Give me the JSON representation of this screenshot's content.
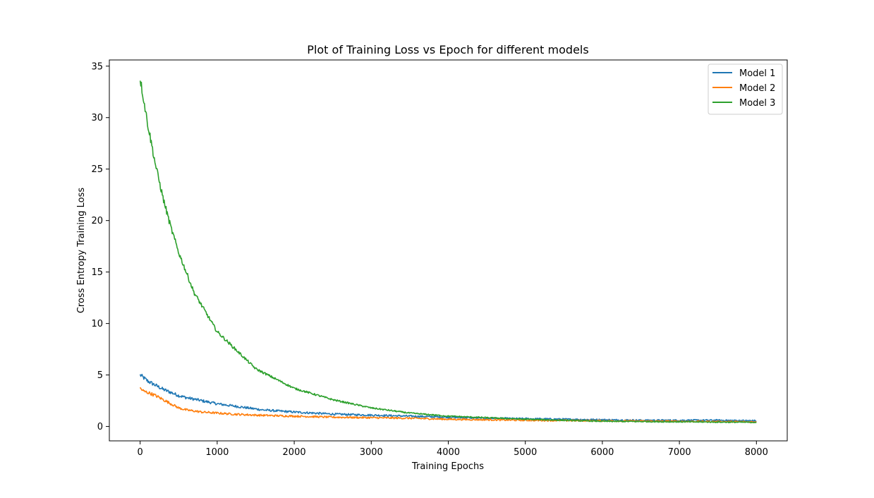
{
  "chart_data": {
    "type": "line",
    "title": "Plot of Training Loss vs Epoch for different models",
    "xlabel": "Training Epochs",
    "ylabel": "Cross Entropy Training Loss",
    "xlim": [
      -400,
      8400
    ],
    "ylim": [
      -1.4,
      35.6
    ],
    "xticks": [
      0,
      1000,
      2000,
      3000,
      4000,
      5000,
      6000,
      7000,
      8000
    ],
    "xtick_labels": [
      "0",
      "1000",
      "2000",
      "3000",
      "4000",
      "5000",
      "6000",
      "7000",
      "8000"
    ],
    "yticks": [
      0,
      5,
      10,
      15,
      20,
      25,
      30,
      35
    ],
    "ytick_labels": [
      "0",
      "5",
      "10",
      "15",
      "20",
      "25",
      "30",
      "35"
    ],
    "grid": false,
    "legend_position": "top-right",
    "series": [
      {
        "name": "Model 1",
        "color": "#1f77b4",
        "x": [
          0,
          100,
          200,
          300,
          400,
          500,
          600,
          800,
          1000,
          1200,
          1400,
          1600,
          1800,
          2000,
          2500,
          3000,
          3500,
          4000,
          4500,
          5000,
          5500,
          6000,
          6500,
          7000,
          7500,
          8000
        ],
        "y": [
          5.0,
          4.4,
          4.0,
          3.6,
          3.3,
          3.0,
          2.8,
          2.5,
          2.2,
          2.0,
          1.8,
          1.6,
          1.5,
          1.4,
          1.2,
          1.1,
          1.0,
          0.9,
          0.8,
          0.75,
          0.7,
          0.65,
          0.6,
          0.6,
          0.6,
          0.55
        ]
      },
      {
        "name": "Model 2",
        "color": "#ff7f0e",
        "x": [
          0,
          50,
          100,
          200,
          300,
          400,
          500,
          600,
          800,
          1000,
          1200,
          1500,
          2000,
          2500,
          3000,
          3500,
          4000,
          5000,
          6000,
          7000,
          8000
        ],
        "y": [
          3.7,
          3.4,
          3.3,
          3.0,
          2.6,
          2.2,
          1.8,
          1.6,
          1.4,
          1.3,
          1.2,
          1.1,
          1.0,
          0.9,
          0.85,
          0.8,
          0.7,
          0.6,
          0.55,
          0.5,
          0.45
        ]
      },
      {
        "name": "Model 3",
        "color": "#2ca02c",
        "x": [
          0,
          100,
          200,
          300,
          400,
          500,
          700,
          1000,
          1500,
          2000,
          2500,
          3000,
          3500,
          4000,
          4500,
          5000,
          5500,
          6000,
          7000,
          8000
        ],
        "y": [
          33.8,
          29.3,
          25.4,
          22.1,
          19.3,
          16.9,
          13.0,
          9.2,
          5.6,
          3.7,
          2.6,
          1.8,
          1.3,
          1.0,
          0.85,
          0.7,
          0.6,
          0.5,
          0.45,
          0.4
        ]
      }
    ]
  }
}
